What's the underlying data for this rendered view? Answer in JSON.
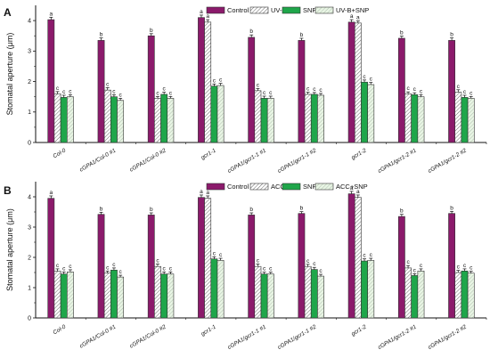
{
  "colors": {
    "control": "#8b1a6b",
    "treatment": "#ffffff",
    "snp": "#1fa64a",
    "combined": "#e8f5e4",
    "hatch": "#555555",
    "axis": "#111111"
  },
  "chart_data": [
    {
      "panel": "A",
      "type": "bar",
      "ylabel": "Stomatal aperture (μm)",
      "ylim": [
        0,
        4.5
      ],
      "yticks": [
        "0",
        "1",
        "2",
        "3",
        "4"
      ],
      "categories": [
        "Col-0",
        "cGPA1/Col-0 #1",
        "cGPA1/Col-0 #2",
        "gcr1-1",
        "cGPA1/gcr1-1 #1",
        "cGPA1/gcr1-1 #2",
        "gcr1-2",
        "cGPA1/gcr1-2 #1",
        "cGPA1/gcr1-2 #2"
      ],
      "series": [
        {
          "name": "Control",
          "values": [
            4.03,
            3.35,
            3.5,
            4.1,
            3.45,
            3.35,
            3.95,
            3.42,
            3.35
          ],
          "errors": [
            0.08,
            0.08,
            0.07,
            0.08,
            0.08,
            0.07,
            0.08,
            0.07,
            0.08
          ],
          "letters": [
            "a",
            "b",
            "b",
            "a",
            "b",
            "b",
            "a",
            "b",
            "b"
          ]
        },
        {
          "name": "UV-B",
          "values": [
            1.6,
            1.72,
            1.45,
            3.95,
            1.7,
            1.58,
            3.92,
            1.6,
            1.65
          ],
          "errors": [
            0.07,
            0.08,
            0.06,
            0.08,
            0.07,
            0.07,
            0.07,
            0.06,
            0.08
          ],
          "letters": [
            "c",
            "c",
            "c",
            "a",
            "c",
            "c",
            "a",
            "c",
            "c"
          ]
        },
        {
          "name": "SNP",
          "values": [
            1.48,
            1.5,
            1.58,
            1.85,
            1.45,
            1.58,
            1.98,
            1.57,
            1.48
          ],
          "errors": [
            0.07,
            0.07,
            0.07,
            0.07,
            0.07,
            0.06,
            0.07,
            0.06,
            0.07
          ],
          "letters": [
            "c",
            "c",
            "c",
            "c",
            "c",
            "c",
            "c",
            "c",
            "c"
          ]
        },
        {
          "name": "UV-B+SNP",
          "values": [
            1.5,
            1.38,
            1.45,
            1.87,
            1.45,
            1.55,
            1.9,
            1.5,
            1.45
          ],
          "errors": [
            0.07,
            0.07,
            0.06,
            0.07,
            0.07,
            0.06,
            0.07,
            0.07,
            0.06
          ],
          "letters": [
            "c",
            "c",
            "c",
            "c",
            "c",
            "c",
            "c",
            "c",
            "c"
          ]
        }
      ]
    },
    {
      "panel": "B",
      "type": "bar",
      "ylabel": "Stomatal aperture (μm)",
      "ylim": [
        0,
        4.5
      ],
      "yticks": [
        "0",
        "1",
        "2",
        "3",
        "4"
      ],
      "categories": [
        "Col-0",
        "cGPA1/Col-0 #1",
        "cGPA1/Col-0 #2",
        "gcr1-1",
        "cGPA1/gcr1-1 #1",
        "cGPA1/gcr1-1 #2",
        "gcr1-2",
        "cGPA1/gcr1-2 #1",
        "cGPA1/gcr1-2 #2"
      ],
      "series": [
        {
          "name": "Control",
          "values": [
            3.95,
            3.42,
            3.4,
            3.98,
            3.4,
            3.45,
            4.1,
            3.35,
            3.45
          ],
          "errors": [
            0.08,
            0.07,
            0.07,
            0.08,
            0.07,
            0.06,
            0.08,
            0.07,
            0.07
          ],
          "letters": [
            "a",
            "b",
            "b",
            "a",
            "b",
            "b",
            "a",
            "b",
            "b"
          ]
        },
        {
          "name": "ACC",
          "values": [
            1.55,
            1.48,
            1.7,
            3.95,
            1.7,
            1.7,
            3.98,
            1.65,
            1.5
          ],
          "errors": [
            0.07,
            0.07,
            0.08,
            0.08,
            0.08,
            0.07,
            0.08,
            0.08,
            0.07
          ],
          "letters": [
            "c",
            "c",
            "c",
            "a",
            "c",
            "c",
            "a",
            "c",
            "c"
          ]
        },
        {
          "name": "SNP",
          "values": [
            1.45,
            1.58,
            1.45,
            1.95,
            1.45,
            1.6,
            1.88,
            1.4,
            1.55
          ],
          "errors": [
            0.07,
            0.07,
            0.07,
            0.07,
            0.06,
            0.07,
            0.07,
            0.06,
            0.07
          ],
          "letters": [
            "c",
            "c",
            "c",
            "c",
            "c",
            "c",
            "c",
            "c",
            "c"
          ]
        },
        {
          "name": "ACC+SNP",
          "values": [
            1.52,
            1.35,
            1.45,
            1.9,
            1.45,
            1.38,
            1.9,
            1.55,
            1.48
          ],
          "errors": [
            0.07,
            0.06,
            0.07,
            0.07,
            0.06,
            0.06,
            0.07,
            0.07,
            0.06
          ],
          "letters": [
            "c",
            "c",
            "c",
            "c",
            "c",
            "c",
            "c",
            "c",
            "c"
          ]
        }
      ]
    }
  ]
}
